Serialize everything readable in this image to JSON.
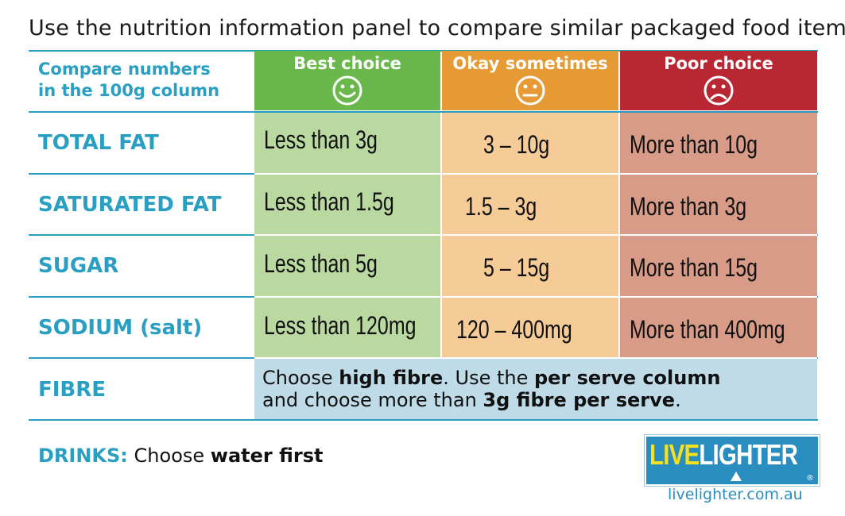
{
  "heading": "Use the nutrition information panel to compare similar packaged food items",
  "left_header": [
    "Compare numbers",
    "in the 100g column"
  ],
  "columns": [
    {
      "title": "Best choice",
      "face": "smile-icon",
      "color": "#6ab84b",
      "cell_bg": "#b9d9a0"
    },
    {
      "title": "Okay sometimes",
      "face": "neutral-face-icon",
      "color": "#e69a36",
      "cell_bg": "#f5cc98"
    },
    {
      "title": "Poor choice",
      "face": "frown-icon",
      "color": "#b82732",
      "cell_bg": "#d79b87"
    }
  ],
  "rows": [
    {
      "label": "TOTAL FAT",
      "best": "Less than 3g",
      "okay": "3 – 10g",
      "poor": "More than 10g"
    },
    {
      "label": "SATURATED FAT",
      "best": "Less than 1.5g",
      "okay": "1.5 – 3g",
      "poor": "More than 3g"
    },
    {
      "label": "SUGAR",
      "best": "Less than 5g",
      "okay": "5 – 15g",
      "poor": "More than 15g"
    },
    {
      "label": "SODIUM (salt)",
      "best": "Less than 120mg",
      "okay": "120 – 400mg",
      "poor": "More than 400mg"
    }
  ],
  "fibre": {
    "label": "FIBRE",
    "line1_a": "Choose ",
    "line1_b": "high fibre",
    "line1_c": ". Use the ",
    "line1_d": "per serve column",
    "line2_a": "and choose more than ",
    "line2_b": "3g fibre per serve",
    "line2_c": ".",
    "bg": "#bedbe7"
  },
  "drinks": {
    "label": "DRINKS:",
    "text_a": " Choose ",
    "text_b": "water first"
  },
  "logo": {
    "live": "LIVE",
    "lighter": "LIGHTER",
    "reg": "®"
  },
  "url": "livelighter.com.au",
  "accent": "#2a9fc2"
}
